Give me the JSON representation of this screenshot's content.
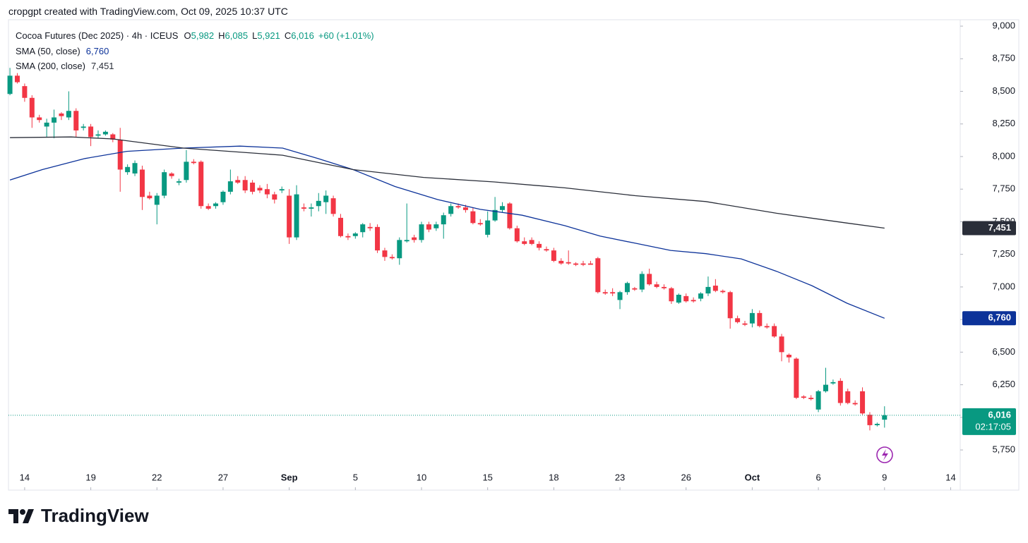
{
  "header": "cropgpt created with TradingView.com, Oct 09, 2025 10:37 UTC",
  "footer": "TradingView",
  "chart_data": {
    "type": "candlestick",
    "title": "Cocoa Futures (Dec 2025) · 4h · ICEUS",
    "ohlc_legend": [
      [
        "O",
        "5,982"
      ],
      [
        "H",
        "6,085"
      ],
      [
        "L",
        "5,921"
      ],
      [
        "C",
        "6,016"
      ]
    ],
    "change": "+60 (+1.01%)",
    "up_color": "#089981",
    "down_color": "#f23645",
    "open": [
      8480,
      8620,
      8540,
      8450,
      8300,
      8230,
      8260,
      8330,
      8300,
      8350,
      8220,
      8230,
      8160,
      8170,
      8170,
      8130,
      7880,
      7870,
      7900,
      7700,
      7630,
      7700,
      7870,
      7800,
      7820,
      7960,
      7960,
      7620,
      7620,
      7650,
      7730,
      7820,
      7820,
      7800,
      7760,
      7750,
      7710,
      7740,
      7700,
      7380,
      7610,
      7600,
      7620,
      7650,
      7680,
      7530,
      7390,
      7390,
      7420,
      7460,
      7460,
      7280,
      7230,
      7220,
      7350,
      7380,
      7360,
      7480,
      7450,
      7480,
      7560,
      7620,
      7610,
      7580,
      7490,
      7400,
      7510,
      7590,
      7640,
      7450,
      7350,
      7360,
      7330,
      7290,
      7280,
      7200,
      7190,
      7180,
      7180,
      7180,
      7220,
      6960,
      6960,
      6900,
      6960,
      6990,
      6980,
      7100,
      7020,
      7000,
      6990,
      6880,
      6930,
      6900,
      6910,
      6950,
      7010,
      6970,
      6960,
      6760,
      6720,
      6720,
      6800,
      6700,
      6700,
      6620,
      6480,
      6450,
      6160,
      6150,
      6060,
      6200,
      6260,
      6280,
      6200,
      6110,
      6200,
      6020,
      5940,
      5982
    ],
    "high": [
      8680,
      8640,
      8560,
      8470,
      8320,
      8290,
      8360,
      8340,
      8500,
      8370,
      8250,
      8250,
      8200,
      8200,
      8180,
      8220,
      7940,
      7970,
      7930,
      7730,
      7720,
      7900,
      7880,
      7830,
      8050,
      7980,
      7970,
      7640,
      7650,
      7740,
      7900,
      7850,
      7850,
      7820,
      7780,
      7790,
      7730,
      7770,
      7750,
      7780,
      7640,
      7640,
      7720,
      7740,
      7700,
      7560,
      7410,
      7420,
      7490,
      7490,
      7480,
      7300,
      7250,
      7380,
      7640,
      7400,
      7500,
      7500,
      7500,
      7570,
      7640,
      7640,
      7630,
      7610,
      7520,
      7580,
      7690,
      7650,
      7650,
      7470,
      7380,
      7380,
      7350,
      7310,
      7300,
      7220,
      7280,
      7190,
      7200,
      7200,
      7230,
      6980,
      6990,
      6970,
      7040,
      7000,
      7120,
      7140,
      7040,
      7020,
      7000,
      6950,
      6950,
      6920,
      6960,
      7080,
      7060,
      6980,
      6970,
      6780,
      6740,
      6830,
      6820,
      6720,
      6720,
      6640,
      6490,
      6460,
      6170,
      6170,
      6210,
      6380,
      6290,
      6300,
      6220,
      6130,
      6230,
      6040,
      5960,
      6085
    ],
    "low": [
      8470,
      8560,
      8420,
      8220,
      8260,
      8150,
      8140,
      8280,
      8280,
      8150,
      8200,
      8080,
      8140,
      8160,
      8110,
      7730,
      7860,
      7850,
      7590,
      7670,
      7480,
      7680,
      7830,
      7780,
      7800,
      7940,
      7600,
      7590,
      7600,
      7630,
      7710,
      7790,
      7720,
      7710,
      7720,
      7680,
      7640,
      7720,
      7330,
      7360,
      7580,
      7540,
      7580,
      7560,
      7540,
      7380,
      7360,
      7370,
      7380,
      7430,
      7260,
      7200,
      7210,
      7170,
      7340,
      7340,
      7340,
      7420,
      7430,
      7370,
      7540,
      7600,
      7570,
      7480,
      7470,
      7380,
      7500,
      7570,
      7440,
      7340,
      7320,
      7320,
      7280,
      7270,
      7190,
      7170,
      7170,
      7160,
      7160,
      7170,
      6950,
      6940,
      6930,
      6830,
      6940,
      6970,
      6960,
      7010,
      6990,
      6980,
      6870,
      6870,
      6880,
      6880,
      6890,
      6930,
      6960,
      6950,
      6680,
      6720,
      6700,
      6690,
      6690,
      6680,
      6610,
      6430,
      6420,
      6140,
      6140,
      6130,
      6040,
      6190,
      6250,
      6090,
      6100,
      6090,
      6020,
      5900,
      5930,
      5921
    ],
    "close": [
      8620,
      8570,
      8450,
      8300,
      8280,
      8260,
      8300,
      8310,
      8350,
      8200,
      8230,
      8150,
      8170,
      8190,
      8130,
      7900,
      7920,
      7950,
      7690,
      7680,
      7700,
      7880,
      7850,
      7810,
      7960,
      7950,
      7620,
      7600,
      7640,
      7730,
      7810,
      7800,
      7740,
      7730,
      7740,
      7710,
      7670,
      7750,
      7380,
      7710,
      7600,
      7610,
      7660,
      7700,
      7560,
      7390,
      7380,
      7410,
      7480,
      7450,
      7280,
      7230,
      7220,
      7360,
      7360,
      7360,
      7480,
      7440,
      7480,
      7550,
      7620,
      7610,
      7590,
      7490,
      7480,
      7510,
      7590,
      7620,
      7450,
      7350,
      7330,
      7330,
      7300,
      7280,
      7200,
      7180,
      7180,
      7170,
      7170,
      7170,
      6960,
      6950,
      6950,
      6960,
      7030,
      6980,
      7100,
      7020,
      7000,
      6990,
      6890,
      6940,
      6890,
      6890,
      6950,
      7000,
      6970,
      6960,
      6760,
      6730,
      6710,
      6800,
      6700,
      6690,
      6620,
      6500,
      6460,
      6150,
      6150,
      6140,
      6200,
      6250,
      6270,
      6110,
      6110,
      6100,
      6030,
      5940,
      5950,
      6016
    ],
    "last_price_label": "6,016",
    "countdown": "02:17:05",
    "series": [
      {
        "name": "SMA (50, close)",
        "legend_value": "6,760",
        "color": "#0c3299",
        "x": [
          0,
          4.4,
          10.2,
          15.9,
          23.6,
          31.3,
          37.1,
          41.9,
          46.7,
          52.4,
          58.2,
          64,
          69.7,
          75.5,
          80.3,
          85.1,
          89.9,
          94.7,
          99.5,
          104.3,
          109.1,
          113.9,
          119
        ],
        "values": [
          7820,
          7900,
          7985,
          8040,
          8065,
          8080,
          8065,
          7985,
          7900,
          7770,
          7670,
          7595,
          7550,
          7470,
          7390,
          7335,
          7280,
          7255,
          7215,
          7120,
          7010,
          6875,
          6760
        ]
      },
      {
        "name": "SMA (200, close)",
        "legend_value": "7,451",
        "color": "#2a2e39",
        "x": [
          0,
          8.3,
          14,
          23.6,
          37.1,
          46.7,
          56.3,
          65.9,
          75.5,
          85.1,
          94.7,
          104.3,
          113.9,
          119
        ],
        "values": [
          8145,
          8150,
          8135,
          8065,
          8010,
          7900,
          7840,
          7805,
          7760,
          7700,
          7655,
          7565,
          7490,
          7451
        ]
      }
    ],
    "xlim": [
      -0.2,
      129.3
    ],
    "xticks": [
      {
        "value": 2,
        "label": "14"
      },
      {
        "value": 11,
        "label": "19"
      },
      {
        "value": 20,
        "label": "22"
      },
      {
        "value": 29,
        "label": "27"
      },
      {
        "value": 38,
        "label": "Sep"
      },
      {
        "value": 47,
        "label": "5"
      },
      {
        "value": 56,
        "label": "10"
      },
      {
        "value": 65,
        "label": "15"
      },
      {
        "value": 74,
        "label": "18"
      },
      {
        "value": 83,
        "label": "23"
      },
      {
        "value": 92,
        "label": "26"
      },
      {
        "value": 101,
        "label": "Oct"
      },
      {
        "value": 110,
        "label": "6"
      },
      {
        "value": 119,
        "label": "9"
      },
      {
        "value": 128,
        "label": "14"
      }
    ],
    "ylim": [
      5442,
      9049
    ],
    "yticks": [
      {
        "value": 5750,
        "label": "5,750"
      },
      {
        "value": 6000,
        "label": "6,000"
      },
      {
        "value": 6250,
        "label": "6,250"
      },
      {
        "value": 6500,
        "label": "6,500"
      },
      {
        "value": 6750,
        "label": "6,750"
      },
      {
        "value": 7000,
        "label": "7,000"
      },
      {
        "value": 7250,
        "label": "7,250"
      },
      {
        "value": 7500,
        "label": "7,500"
      },
      {
        "value": 7750,
        "label": "7,750"
      },
      {
        "value": 8000,
        "label": "8,000"
      },
      {
        "value": 8250,
        "label": "8,250"
      },
      {
        "value": 8500,
        "label": "8,500"
      },
      {
        "value": 8750,
        "label": "8,750"
      },
      {
        "value": 9000,
        "label": "9,000"
      }
    ]
  }
}
